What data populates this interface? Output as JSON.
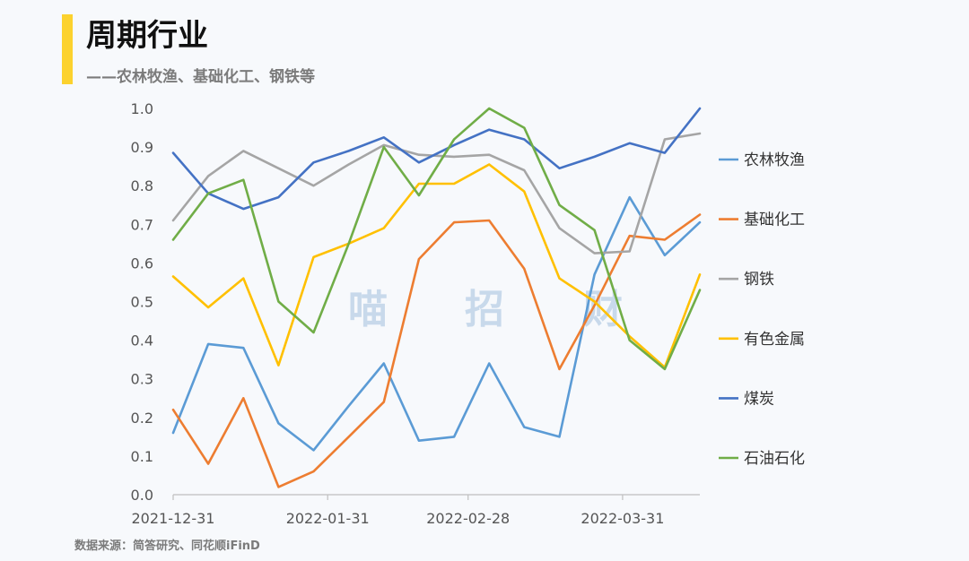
{
  "header": {
    "title": "周期行业",
    "subtitle": "——农林牧渔、基础化工、钢铁等"
  },
  "footer": {
    "source": "数据来源：简答研究、同花顺iFinD"
  },
  "watermark": [
    "喵",
    "招",
    "财"
  ],
  "chart_data": {
    "type": "line",
    "title": "",
    "xlabel": "",
    "ylabel": "",
    "ylim": [
      0.0,
      1.0
    ],
    "yticks": [
      "0.0",
      "0.1",
      "0.2",
      "0.3",
      "0.4",
      "0.5",
      "0.6",
      "0.7",
      "0.8",
      "0.9",
      "1.0"
    ],
    "x_tick_labels": [
      {
        "index": 0,
        "label": "2021-12-31"
      },
      {
        "index": 4.4,
        "label": "2022-01-31"
      },
      {
        "index": 8.4,
        "label": "2022-02-28"
      },
      {
        "index": 12.8,
        "label": "2022-03-31"
      }
    ],
    "grid": false,
    "legend": "right",
    "series": [
      {
        "name": "农林牧渔",
        "color": "#5b9bd5",
        "values": [
          0.16,
          0.39,
          0.38,
          0.185,
          0.115,
          0.23,
          0.34,
          0.14,
          0.15,
          0.34,
          0.175,
          0.15,
          0.57,
          0.77,
          0.62,
          0.705
        ]
      },
      {
        "name": "基础化工",
        "color": "#ed7d31",
        "values": [
          0.22,
          0.08,
          0.25,
          0.02,
          0.06,
          0.15,
          0.24,
          0.61,
          0.705,
          0.71,
          0.585,
          0.325,
          0.49,
          0.67,
          0.66,
          0.725
        ]
      },
      {
        "name": "钢铁",
        "color": "#a5a5a5",
        "values": [
          0.71,
          0.825,
          0.89,
          0.845,
          0.8,
          0.855,
          0.905,
          0.88,
          0.875,
          0.88,
          0.84,
          0.69,
          0.625,
          0.63,
          0.92,
          0.935
        ]
      },
      {
        "name": "有色金属",
        "color": "#ffc000",
        "values": [
          0.565,
          0.485,
          0.56,
          0.335,
          0.615,
          0.65,
          0.69,
          0.805,
          0.805,
          0.855,
          0.785,
          0.56,
          0.5,
          0.41,
          0.33,
          0.57
        ]
      },
      {
        "name": "煤炭",
        "color": "#4472c4",
        "values": [
          0.885,
          0.78,
          0.74,
          0.77,
          0.86,
          0.89,
          0.925,
          0.86,
          0.905,
          0.945,
          0.92,
          0.845,
          0.875,
          0.91,
          0.885,
          1.0
        ]
      },
      {
        "name": "石油石化",
        "color": "#70ad47",
        "values": [
          0.66,
          0.78,
          0.815,
          0.5,
          0.42,
          0.65,
          0.9,
          0.775,
          0.92,
          1.0,
          0.95,
          0.75,
          0.685,
          0.4,
          0.325,
          0.53
        ]
      }
    ]
  }
}
